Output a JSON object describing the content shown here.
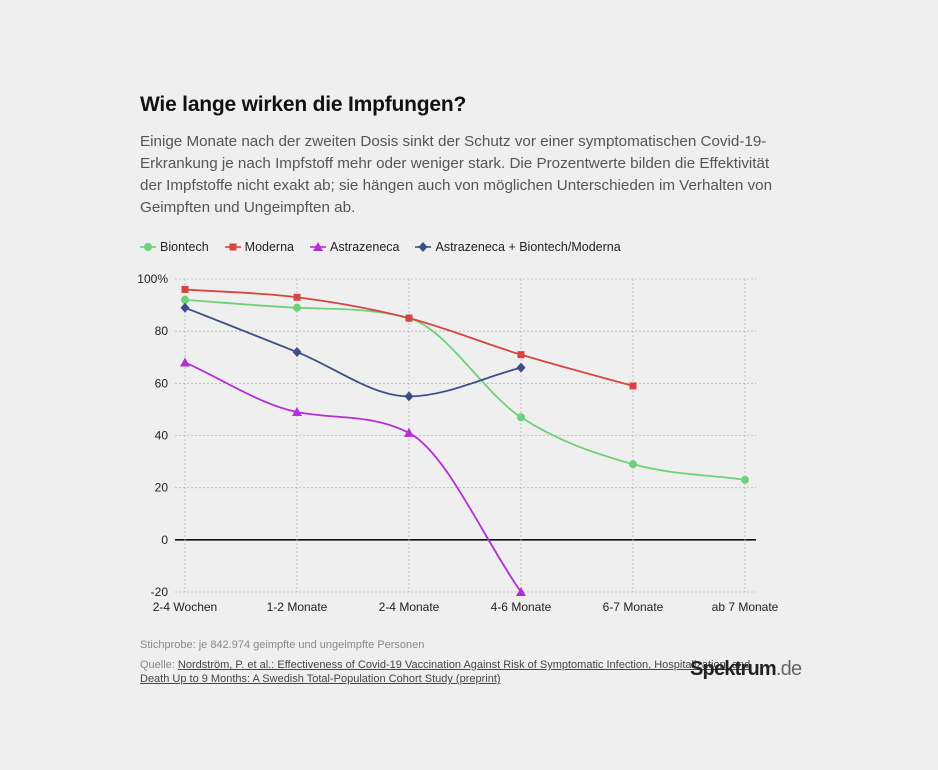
{
  "title": "Wie lange wirken die Impfungen?",
  "subtitle": "Einige Monate nach der zweiten Dosis sinkt der Schutz vor einer symptomatischen Covid-19-Erkrankung je nach Impfstoff mehr oder weniger stark. Die Prozentwerte bilden die Effektivität der Impfstoffe nicht exakt ab; sie hängen auch von möglichen Unterschieden im Verhalten von Geimpften und Ungeimpften ab.",
  "footer": {
    "sample": "Stichprobe: je 842.974 geimpfte und ungeimpfte Personen",
    "source_prefix": "Quelle: ",
    "source_link": "Nordström, P. et al.: Effectiveness of Covid-19 Vaccination Against Risk of Symptomatic Infection, Hospitalization, and Death Up to 9 Months: A Swedish Total-Population Cohort Study (preprint)"
  },
  "brand": {
    "name": "Spektrum",
    "suffix": ".de"
  },
  "chart_data": {
    "type": "line",
    "categories": [
      "2-4 Wochen",
      "1-2 Monate",
      "2-4 Monate",
      "4-6 Monate",
      "6-7 Monate",
      "ab 7 Monate"
    ],
    "yticks": [
      "100%",
      "80",
      "60",
      "40",
      "20",
      "0",
      "-20"
    ],
    "ylim": [
      -20,
      100
    ],
    "grid": true,
    "legend_position": "top-left",
    "series": [
      {
        "name": "Biontech",
        "color": "#6fd07a",
        "marker": "circle",
        "values": [
          92,
          89,
          85,
          47,
          29,
          23
        ]
      },
      {
        "name": "Moderna",
        "color": "#d64541",
        "marker": "square",
        "values": [
          96,
          93,
          85,
          71,
          59,
          null
        ]
      },
      {
        "name": "Astrazeneca",
        "color": "#b42fd6",
        "marker": "triangle",
        "values": [
          68,
          49,
          41,
          -20,
          null,
          null
        ]
      },
      {
        "name": "Astrazeneca + Biontech/Moderna",
        "color": "#3b4f86",
        "marker": "diamond",
        "values": [
          89,
          72,
          55,
          66,
          null,
          null
        ]
      }
    ]
  }
}
